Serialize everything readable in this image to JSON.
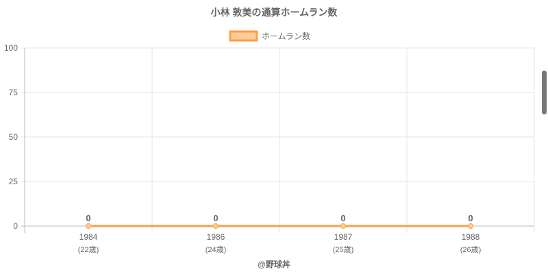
{
  "chart_data": {
    "type": "line",
    "title": "小林 敦美の通算ホームラン数",
    "categories": [
      "1984",
      "1986",
      "1987",
      "1988"
    ],
    "category_sublabels": [
      "(22歳)",
      "(24歳)",
      "(25歳)",
      "(26歳)"
    ],
    "series": [
      {
        "name": "ホームラン数",
        "values": [
          0,
          0,
          0,
          0
        ],
        "color": "#ff9f40",
        "fill": "#ffcc99"
      }
    ],
    "ylim": [
      0,
      100
    ],
    "yticks": [
      0,
      25,
      50,
      75,
      100
    ],
    "grid": true,
    "legend": "top",
    "data_labels": true
  },
  "credit": "@野球丼"
}
